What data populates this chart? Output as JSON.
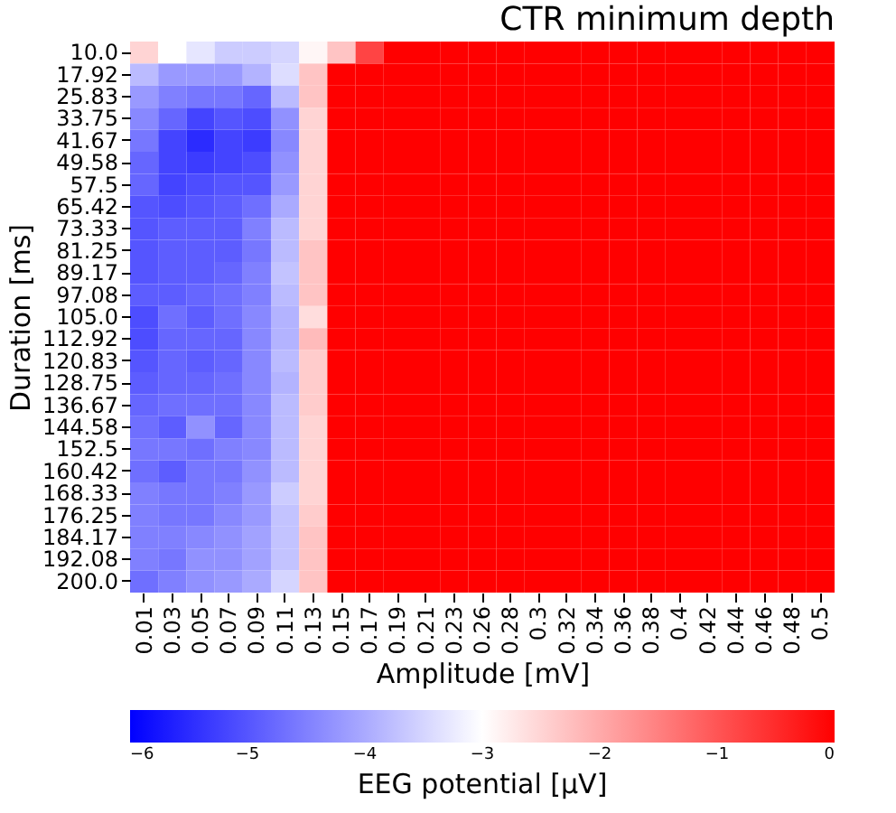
{
  "chart_data": {
    "type": "heatmap",
    "title": "CTR minimum depth",
    "xlabel": "Amplitude [mV]",
    "ylabel": "Duration [ms]",
    "clabel": "EEG potential [μV]",
    "categories": [
      "0.01",
      "0.03",
      "0.05",
      "0.07",
      "0.09",
      "0.11",
      "0.13",
      "0.15",
      "0.17",
      "0.19",
      "0.21",
      "0.23",
      "0.26",
      "0.28",
      "0.3",
      "0.32",
      "0.34",
      "0.36",
      "0.38",
      "0.4",
      "0.42",
      "0.44",
      "0.46",
      "0.48",
      "0.5"
    ],
    "y_categories": [
      "10.0",
      "17.92",
      "25.83",
      "33.75",
      "41.67",
      "49.58",
      "57.5",
      "65.42",
      "73.33",
      "81.25",
      "89.17",
      "97.08",
      "105.0",
      "112.92",
      "120.83",
      "128.75",
      "136.67",
      "144.58",
      "152.5",
      "160.42",
      "168.33",
      "176.25",
      "184.17",
      "192.08",
      "200.0"
    ],
    "cells": [
      [
        -2.5,
        -3.0,
        -3.3,
        -3.6,
        -3.6,
        -3.5,
        -2.9,
        -2.3,
        -0.8,
        0,
        0,
        0,
        0,
        0,
        0,
        0,
        0,
        0,
        0,
        0,
        0,
        0,
        0,
        0,
        0
      ],
      [
        -3.8,
        -4.2,
        -4.2,
        -4.2,
        -3.9,
        -3.4,
        -2.3,
        0,
        0,
        0,
        0,
        0,
        0,
        0,
        0,
        0,
        0,
        0,
        0,
        0,
        0,
        0,
        0,
        0,
        0
      ],
      [
        -4.2,
        -4.5,
        -4.6,
        -4.6,
        -4.8,
        -3.8,
        -2.3,
        0,
        0,
        0,
        0,
        0,
        0,
        0,
        0,
        0,
        0,
        0,
        0,
        0,
        0,
        0,
        0,
        0,
        0
      ],
      [
        -4.4,
        -4.8,
        -5.2,
        -5.0,
        -5.1,
        -4.3,
        -2.5,
        0,
        0,
        0,
        0,
        0,
        0,
        0,
        0,
        0,
        0,
        0,
        0,
        0,
        0,
        0,
        0,
        0,
        0
      ],
      [
        -4.6,
        -5.2,
        -5.5,
        -5.2,
        -5.3,
        -4.4,
        -2.5,
        0,
        0,
        0,
        0,
        0,
        0,
        0,
        0,
        0,
        0,
        0,
        0,
        0,
        0,
        0,
        0,
        0,
        0
      ],
      [
        -4.8,
        -5.2,
        -5.3,
        -5.2,
        -5.1,
        -4.3,
        -2.5,
        0,
        0,
        0,
        0,
        0,
        0,
        0,
        0,
        0,
        0,
        0,
        0,
        0,
        0,
        0,
        0,
        0,
        0
      ],
      [
        -4.8,
        -5.2,
        -5.1,
        -5.0,
        -5.0,
        -4.2,
        -2.5,
        0,
        0,
        0,
        0,
        0,
        0,
        0,
        0,
        0,
        0,
        0,
        0,
        0,
        0,
        0,
        0,
        0,
        0
      ],
      [
        -5.0,
        -5.1,
        -5.0,
        -4.9,
        -4.7,
        -4.0,
        -2.5,
        0,
        0,
        0,
        0,
        0,
        0,
        0,
        0,
        0,
        0,
        0,
        0,
        0,
        0,
        0,
        0,
        0,
        0
      ],
      [
        -5.0,
        -4.9,
        -4.9,
        -4.9,
        -4.5,
        -3.8,
        -2.5,
        0,
        0,
        0,
        0,
        0,
        0,
        0,
        0,
        0,
        0,
        0,
        0,
        0,
        0,
        0,
        0,
        0,
        0
      ],
      [
        -5.0,
        -4.9,
        -4.9,
        -4.9,
        -4.6,
        -3.8,
        -2.3,
        0,
        0,
        0,
        0,
        0,
        0,
        0,
        0,
        0,
        0,
        0,
        0,
        0,
        0,
        0,
        0,
        0,
        0
      ],
      [
        -5.0,
        -4.9,
        -4.9,
        -4.8,
        -4.5,
        -3.7,
        -2.3,
        0,
        0,
        0,
        0,
        0,
        0,
        0,
        0,
        0,
        0,
        0,
        0,
        0,
        0,
        0,
        0,
        0,
        0
      ],
      [
        -4.9,
        -4.9,
        -4.8,
        -4.7,
        -4.5,
        -3.8,
        -2.3,
        0,
        0,
        0,
        0,
        0,
        0,
        0,
        0,
        0,
        0,
        0,
        0,
        0,
        0,
        0,
        0,
        0,
        0
      ],
      [
        -5.1,
        -4.7,
        -4.9,
        -4.7,
        -4.4,
        -3.9,
        -2.6,
        0,
        0,
        0,
        0,
        0,
        0,
        0,
        0,
        0,
        0,
        0,
        0,
        0,
        0,
        0,
        0,
        0,
        0
      ],
      [
        -5.1,
        -4.8,
        -4.8,
        -4.8,
        -4.4,
        -3.9,
        -2.2,
        0,
        0,
        0,
        0,
        0,
        0,
        0,
        0,
        0,
        0,
        0,
        0,
        0,
        0,
        0,
        0,
        0,
        0
      ],
      [
        -5.0,
        -4.8,
        -4.9,
        -4.8,
        -4.4,
        -3.8,
        -2.4,
        0,
        0,
        0,
        0,
        0,
        0,
        0,
        0,
        0,
        0,
        0,
        0,
        0,
        0,
        0,
        0,
        0,
        0
      ],
      [
        -4.9,
        -4.8,
        -4.8,
        -4.7,
        -4.4,
        -3.9,
        -2.4,
        0,
        0,
        0,
        0,
        0,
        0,
        0,
        0,
        0,
        0,
        0,
        0,
        0,
        0,
        0,
        0,
        0,
        0
      ],
      [
        -4.8,
        -4.7,
        -4.7,
        -4.7,
        -4.4,
        -3.8,
        -2.4,
        0,
        0,
        0,
        0,
        0,
        0,
        0,
        0,
        0,
        0,
        0,
        0,
        0,
        0,
        0,
        0,
        0,
        0
      ],
      [
        -4.7,
        -4.9,
        -4.3,
        -4.8,
        -4.4,
        -3.8,
        -2.5,
        0,
        0,
        0,
        0,
        0,
        0,
        0,
        0,
        0,
        0,
        0,
        0,
        0,
        0,
        0,
        0,
        0,
        0
      ],
      [
        -4.6,
        -4.6,
        -4.7,
        -4.5,
        -4.4,
        -3.8,
        -2.5,
        0,
        0,
        0,
        0,
        0,
        0,
        0,
        0,
        0,
        0,
        0,
        0,
        0,
        0,
        0,
        0,
        0,
        0
      ],
      [
        -4.7,
        -4.9,
        -4.6,
        -4.6,
        -4.3,
        -3.8,
        -2.5,
        0,
        0,
        0,
        0,
        0,
        0,
        0,
        0,
        0,
        0,
        0,
        0,
        0,
        0,
        0,
        0,
        0,
        0
      ],
      [
        -4.5,
        -4.6,
        -4.6,
        -4.5,
        -4.2,
        -3.6,
        -2.5,
        0,
        0,
        0,
        0,
        0,
        0,
        0,
        0,
        0,
        0,
        0,
        0,
        0,
        0,
        0,
        0,
        0,
        0
      ],
      [
        -4.5,
        -4.6,
        -4.6,
        -4.4,
        -4.2,
        -3.7,
        -2.4,
        0,
        0,
        0,
        0,
        0,
        0,
        0,
        0,
        0,
        0,
        0,
        0,
        0,
        0,
        0,
        0,
        0,
        0
      ],
      [
        -4.5,
        -4.5,
        -4.4,
        -4.3,
        -4.1,
        -3.7,
        -2.3,
        0,
        0,
        0,
        0,
        0,
        0,
        0,
        0,
        0,
        0,
        0,
        0,
        0,
        0,
        0,
        0,
        0,
        0
      ],
      [
        -4.5,
        -4.6,
        -4.3,
        -4.3,
        -4.1,
        -3.7,
        -2.3,
        0,
        0,
        0,
        0,
        0,
        0,
        0,
        0,
        0,
        0,
        0,
        0,
        0,
        0,
        0,
        0,
        0,
        0
      ],
      [
        -4.7,
        -4.5,
        -4.3,
        -4.2,
        -4.0,
        -3.5,
        -2.3,
        0,
        0,
        0,
        0,
        0,
        0,
        0,
        0,
        0,
        0,
        0,
        0,
        0,
        0,
        0,
        0,
        0,
        0
      ]
    ],
    "clim": [
      -6,
      0
    ],
    "cticks": [
      {
        "value": -6,
        "label": "−6"
      },
      {
        "value": -5,
        "label": "−5"
      },
      {
        "value": -4,
        "label": "−4"
      },
      {
        "value": -3,
        "label": "−3"
      },
      {
        "value": -2,
        "label": "−2"
      },
      {
        "value": -1,
        "label": "−1"
      },
      {
        "value": 0,
        "label": "0"
      }
    ]
  }
}
